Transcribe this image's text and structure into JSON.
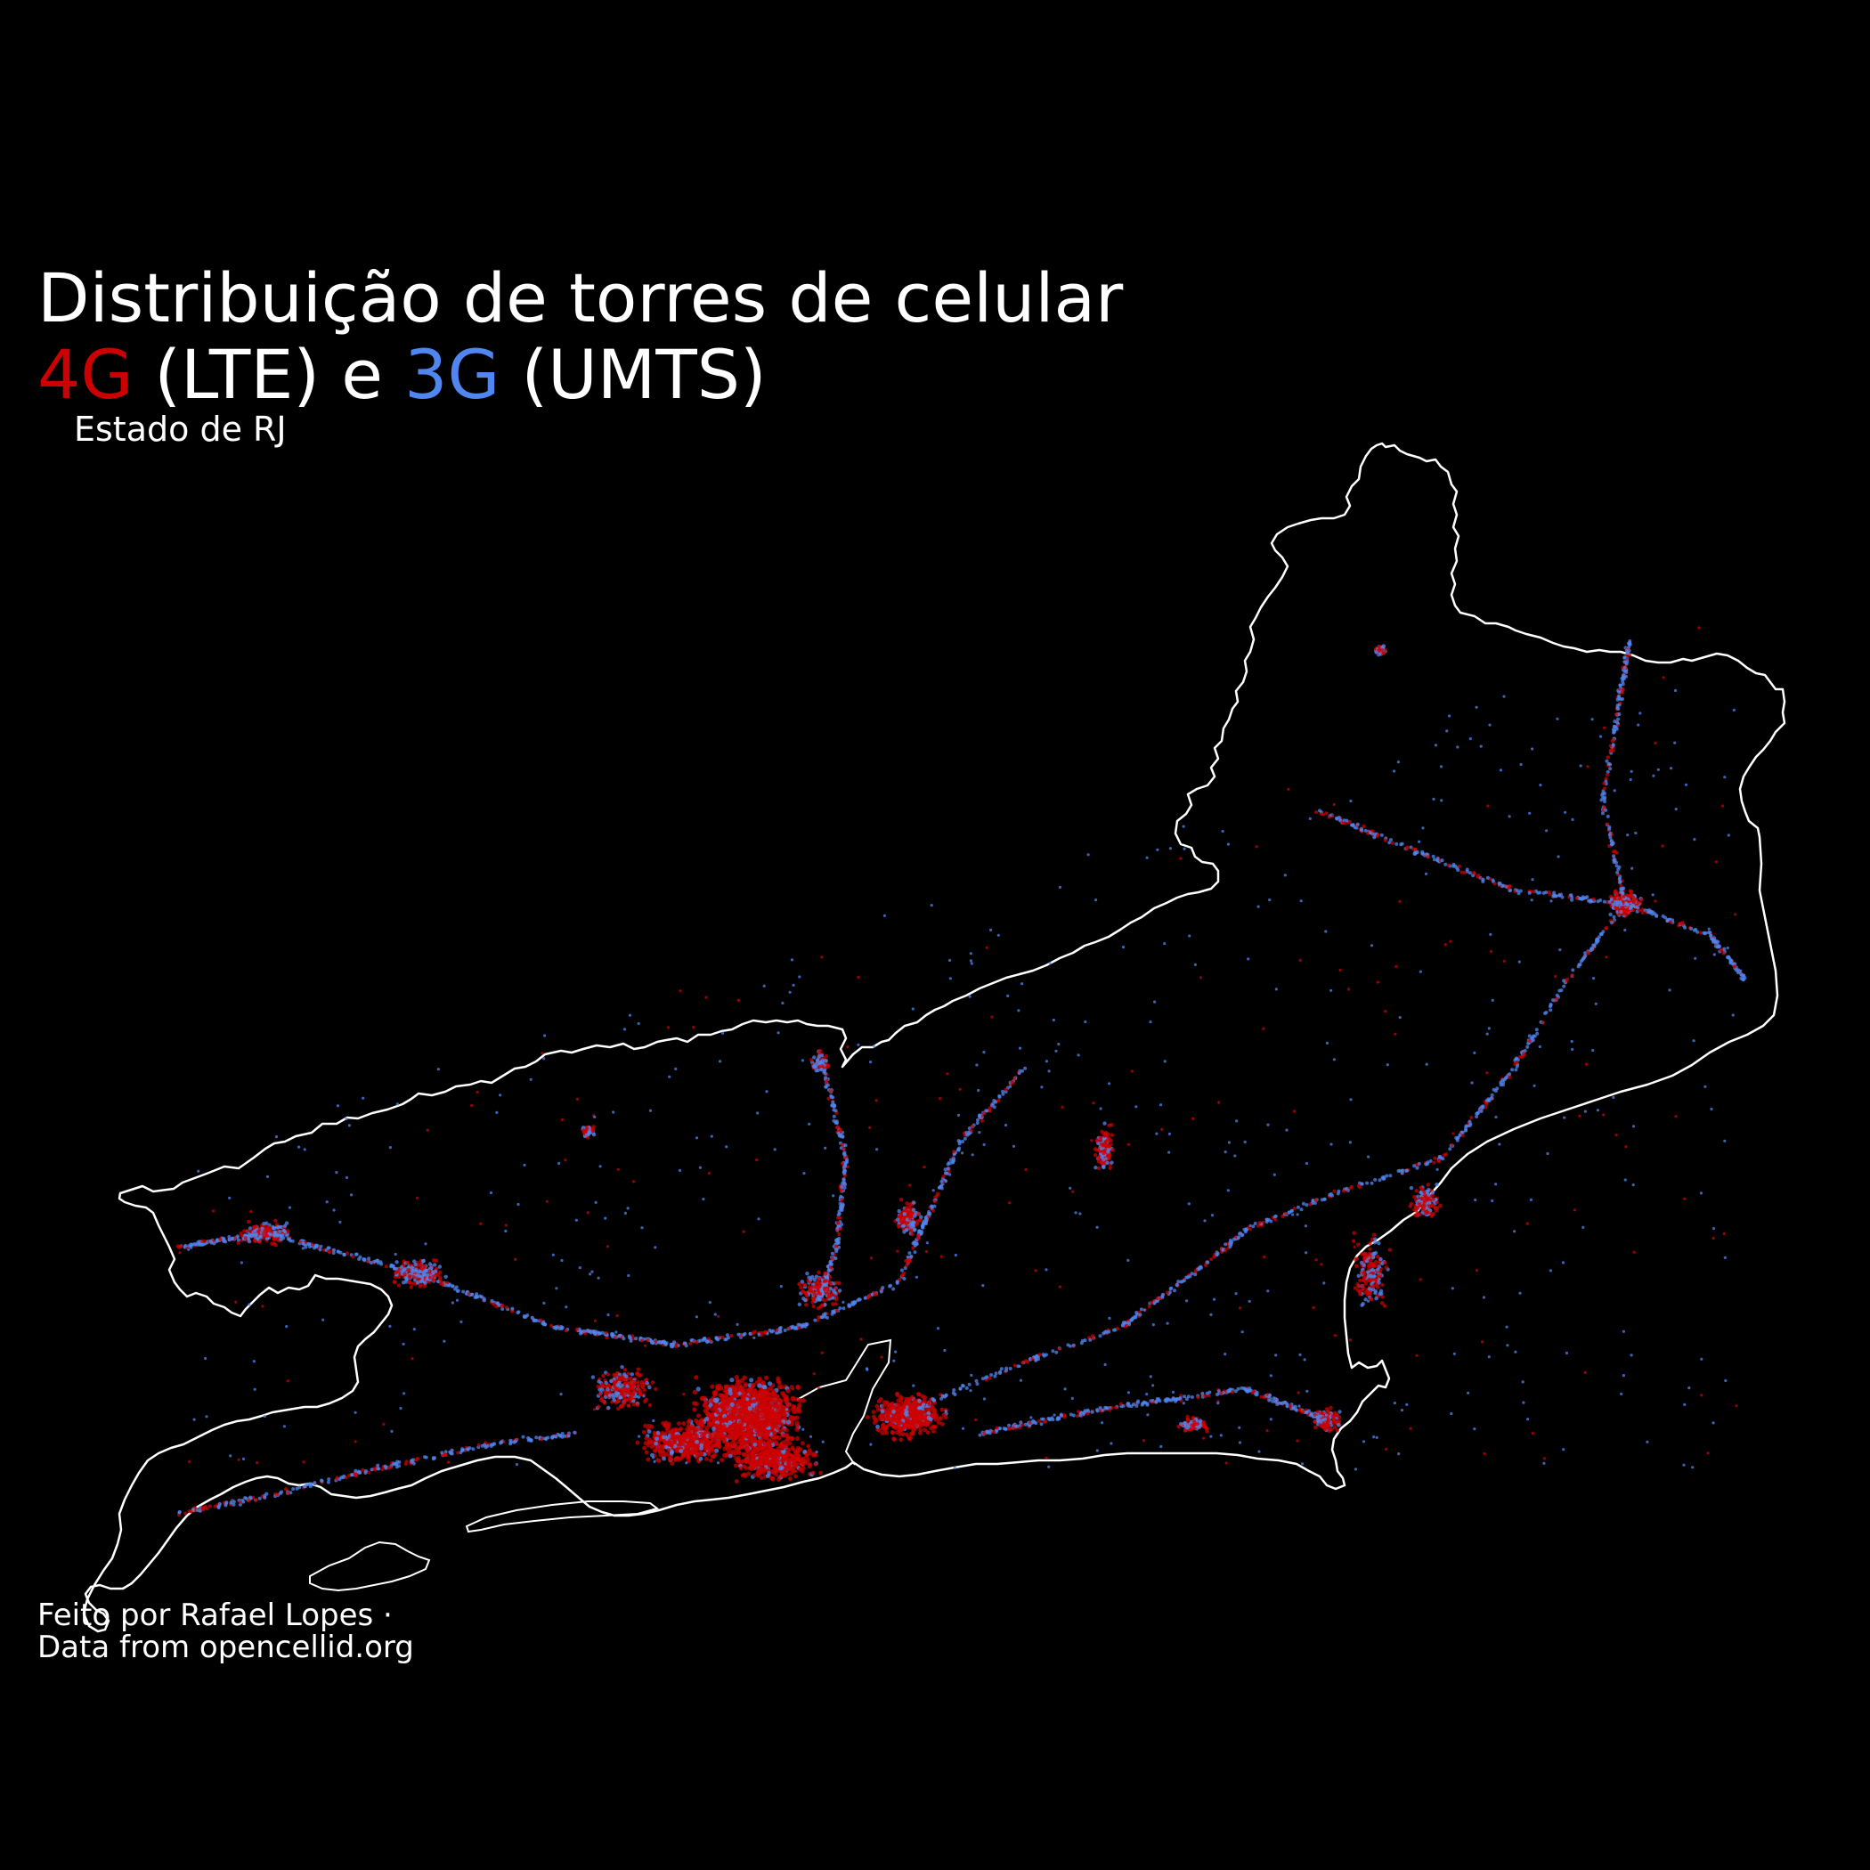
{
  "title": {
    "line1": "Distribuição de torres de celular",
    "lte_label": "4G",
    "lte_text": " (LTE) e ",
    "umts_label": "3G",
    "umts_text": " (UMTS)"
  },
  "subtitle": "Estado de RJ",
  "credit": {
    "line1": "Feito por Rafael Lopes ·",
    "line2": "Data from opencellid.org"
  },
  "colors": {
    "background": "#000000",
    "lte": "#cc0000",
    "umts": "#4f86f0",
    "border": "#ffffff"
  }
}
